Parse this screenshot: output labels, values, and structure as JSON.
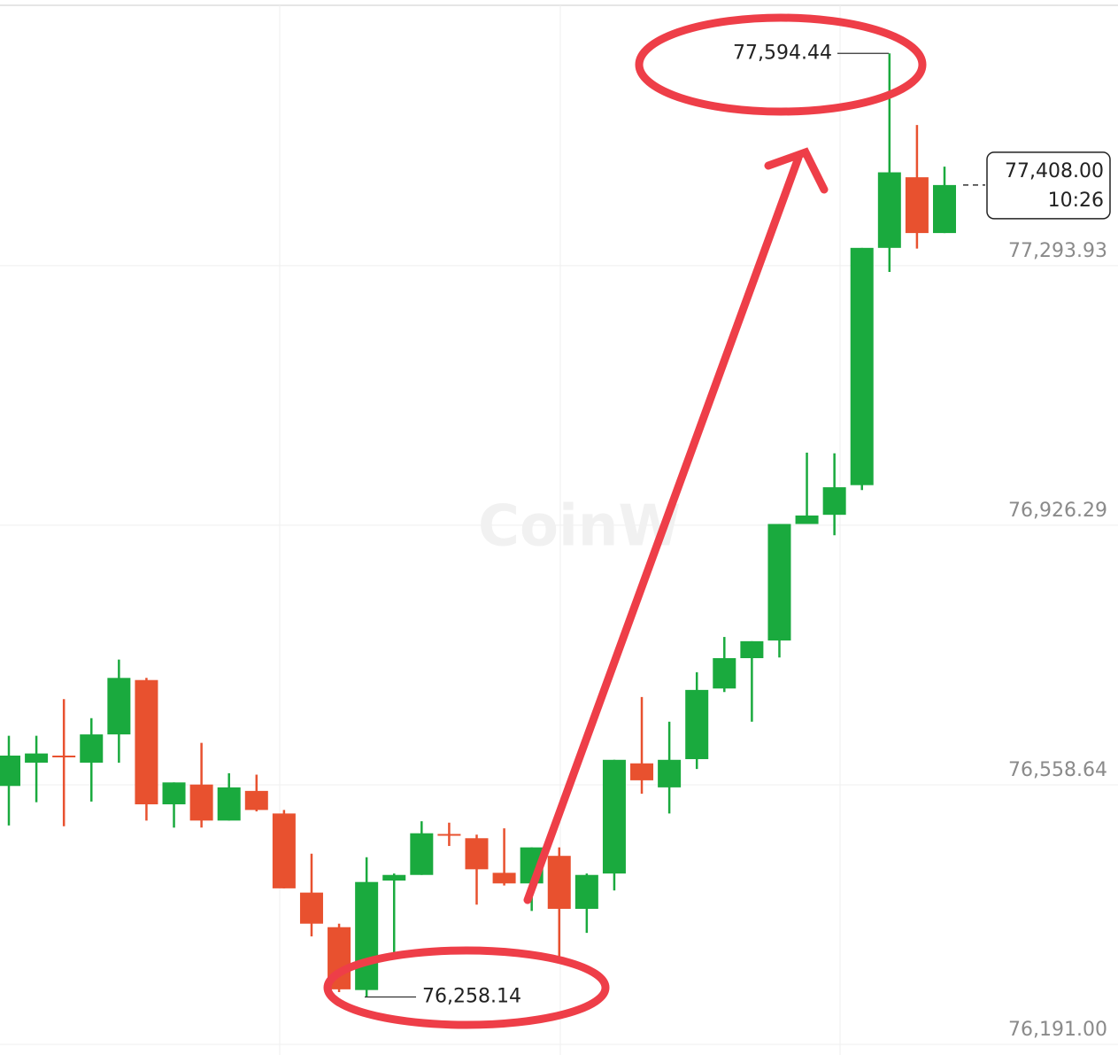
{
  "chart_data": {
    "type": "candlestick",
    "watermark": "CoinW",
    "open": [
      76557,
      76590,
      76600,
      76590,
      76630,
      76707,
      76531,
      76559,
      76508,
      76550,
      76518,
      76406,
      76357,
      76268,
      76423,
      76431,
      76489,
      76483,
      76434,
      76419,
      76458,
      76383,
      76433,
      76589,
      76555,
      76595,
      76695,
      76738,
      76763,
      76928,
      76941,
      76983,
      77319,
      77419,
      77340
    ],
    "high": [
      76628,
      76628,
      76680,
      76653,
      76736,
      76710,
      76562,
      76618,
      76575,
      76573,
      76523,
      76461,
      76362,
      76456,
      76433,
      76507,
      76505,
      76488,
      76497,
      76470,
      76470,
      76433,
      76594,
      76683,
      76648,
      76718,
      76768,
      76762,
      76928,
      77029,
      77028,
      77319,
      77594.44,
      77493,
      77434
    ],
    "low": [
      76501,
      76534,
      76500,
      76535,
      76590,
      76508,
      76498,
      76498,
      76508,
      76521,
      76412,
      76344,
      76265,
      76258.14,
      76316,
      76431,
      76472,
      76389,
      76416,
      76380,
      76315,
      76349,
      76409,
      76546,
      76518,
      76581,
      76690,
      76648,
      76739,
      76928,
      76912,
      76976,
      77285,
      77318,
      77340
    ],
    "close": [
      76600,
      76603,
      76599,
      76630,
      76710,
      76531,
      76562,
      76508,
      76555,
      76523,
      76412,
      76362,
      76269,
      76421,
      76431,
      76490,
      76488,
      76439,
      76419,
      76470,
      76383,
      76431,
      76594,
      76565,
      76594,
      76693,
      76738,
      76762,
      76928,
      76940,
      76980,
      77319,
      77426,
      77340,
      77408
    ],
    "up_color": "#1aaa3e",
    "down_color": "#e8512f",
    "ylim": [
      76176,
      77660
    ],
    "yticks": [
      {
        "value": 76191.0,
        "label": "76,191.00"
      },
      {
        "value": 76558.64,
        "label": "76,558.64"
      },
      {
        "value": 76926.29,
        "label": "76,926.29"
      },
      {
        "value": 77293.93,
        "label": "77,293.93"
      }
    ],
    "grid": true,
    "high_marker": {
      "value": 77594.44,
      "label": "77,594.44"
    },
    "low_marker": {
      "value": 76258.14,
      "label": "76,258.14"
    },
    "last_price": {
      "value": 77408,
      "label": "77,408.00"
    },
    "countdown": "10:26"
  }
}
